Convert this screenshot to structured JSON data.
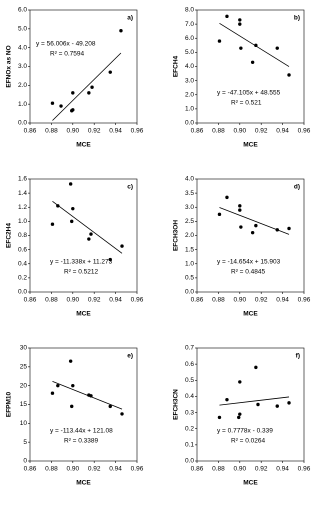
{
  "chart_data": [
    {
      "type": "scatter",
      "panel_label": "a)",
      "xlabel": "MCE",
      "ylabel": "EFNOx as NO",
      "equation": "y = 56.006x - 49.208",
      "r2": "R² = 0.7594",
      "x": [
        0.881,
        0.889,
        0.899,
        0.9,
        0.9,
        0.915,
        0.918,
        0.935,
        0.945
      ],
      "values": [
        1.05,
        0.9,
        0.65,
        0.7,
        1.6,
        1.6,
        1.9,
        2.7,
        4.9
      ],
      "fit": {
        "slope": 56.006,
        "intercept": -49.208
      },
      "color": "#000000",
      "xlim": [
        0.86,
        0.96
      ],
      "xticks": [
        0.86,
        0.88,
        {
          "value": 0.9,
          "label": "0.90"
        },
        0.92,
        0.94,
        0.96
      ],
      "ylim": [
        0,
        6
      ],
      "yticks": [
        {
          "value": 0,
          "label": "0.0"
        },
        {
          "value": 1,
          "label": "1.0"
        },
        {
          "value": 2,
          "label": "2.0"
        },
        {
          "value": 3,
          "label": "3.0"
        },
        {
          "value": 4,
          "label": "4.0"
        },
        {
          "value": 5,
          "label": "5.0"
        },
        {
          "value": 6,
          "label": "6.0"
        }
      ]
    },
    {
      "type": "scatter",
      "panel_label": "b)",
      "xlabel": "MCE",
      "ylabel": "EFCH4",
      "equation": "y = -47.105x + 48.555",
      "r2": "R² = 0.521",
      "x": [
        0.881,
        0.888,
        0.9,
        0.9,
        0.901,
        0.912,
        0.915,
        0.935,
        0.946
      ],
      "values": [
        5.8,
        7.55,
        7.0,
        7.3,
        5.3,
        4.3,
        5.5,
        5.3,
        3.4
      ],
      "fit": {
        "slope": -47.105,
        "intercept": 48.555
      },
      "color": "#000000",
      "xlim": [
        0.86,
        0.96
      ],
      "xticks": [
        0.86,
        0.88,
        {
          "value": 0.9,
          "label": "0.90"
        },
        0.92,
        0.94,
        0.96
      ],
      "ylim": [
        0,
        8
      ],
      "yticks": [
        {
          "value": 0,
          "label": "0.0"
        },
        {
          "value": 1,
          "label": "1.0"
        },
        {
          "value": 2,
          "label": "2.0"
        },
        {
          "value": 3,
          "label": "3.0"
        },
        {
          "value": 4,
          "label": "4.0"
        },
        {
          "value": 5,
          "label": "5.0"
        },
        {
          "value": 6,
          "label": "6.0"
        },
        {
          "value": 7,
          "label": "7.0"
        },
        {
          "value": 8,
          "label": "8.0"
        }
      ]
    },
    {
      "type": "scatter",
      "panel_label": "c)",
      "xlabel": "MCE",
      "ylabel": "EFC2H4",
      "equation": "y = -11.338x + 11.273",
      "r2": "R² = 0.5212",
      "x": [
        0.881,
        0.886,
        0.898,
        0.899,
        0.9,
        0.915,
        0.917,
        0.935,
        0.946
      ],
      "values": [
        0.96,
        1.22,
        1.53,
        1.0,
        1.18,
        0.75,
        0.82,
        0.46,
        0.65
      ],
      "fit": {
        "slope": -11.338,
        "intercept": 11.273
      },
      "color": "#000000",
      "xlim": [
        0.86,
        0.96
      ],
      "xticks": [
        0.86,
        0.88,
        {
          "value": 0.9,
          "label": "0.90"
        },
        0.92,
        0.94,
        0.96
      ],
      "ylim": [
        0,
        1.6
      ],
      "yticks": [
        {
          "value": 0,
          "label": "0.0"
        },
        0.2,
        0.4,
        0.6,
        0.8,
        {
          "value": 1,
          "label": "1.0"
        },
        1.2,
        1.4,
        1.6
      ]
    },
    {
      "type": "scatter",
      "panel_label": "d)",
      "xlabel": "MCE",
      "ylabel": "EFCH3OH",
      "equation": "y = -14.654x + 15.903",
      "r2": "R² = 0.4845",
      "x": [
        0.881,
        0.888,
        0.9,
        0.9,
        0.901,
        0.912,
        0.915,
        0.935,
        0.946
      ],
      "values": [
        2.75,
        3.35,
        2.9,
        3.05,
        2.3,
        2.1,
        2.35,
        2.2,
        2.25
      ],
      "fit": {
        "slope": -14.654,
        "intercept": 15.903
      },
      "color": "#000000",
      "xlim": [
        0.86,
        0.96
      ],
      "xticks": [
        0.86,
        0.88,
        {
          "value": 0.9,
          "label": "0.90"
        },
        0.92,
        0.94,
        0.96
      ],
      "ylim": [
        0,
        4
      ],
      "yticks": [
        {
          "value": 0,
          "label": "0.0"
        },
        0.5,
        {
          "value": 1,
          "label": "1.0"
        },
        1.5,
        {
          "value": 2,
          "label": "2.0"
        },
        2.5,
        {
          "value": 3,
          "label": "3.0"
        },
        3.5,
        {
          "value": 4,
          "label": "4.0"
        }
      ]
    },
    {
      "type": "scatter",
      "panel_label": "e)",
      "xlabel": "MCE",
      "ylabel": "EFPM10",
      "equation": "y = -113.44x + 121.08",
      "r2": "R² = 0.3389",
      "x": [
        0.881,
        0.886,
        0.898,
        0.899,
        0.9,
        0.915,
        0.917,
        0.935,
        0.946
      ],
      "values": [
        18,
        20,
        26.5,
        14.5,
        20,
        17.5,
        17.3,
        14.5,
        12.5
      ],
      "fit": {
        "slope": -113.44,
        "intercept": 121.08
      },
      "color": "#000000",
      "xlim": [
        0.86,
        0.96
      ],
      "xticks": [
        0.86,
        0.88,
        {
          "value": 0.9,
          "label": "0.90"
        },
        0.92,
        0.94,
        0.96
      ],
      "ylim": [
        0,
        30
      ],
      "yticks": [
        0,
        5,
        10,
        15,
        20,
        25,
        30
      ]
    },
    {
      "type": "scatter",
      "panel_label": "f)",
      "xlabel": "MCE",
      "ylabel": "EFCH3CN",
      "equation": "y = 0.7778x - 0.339",
      "r2": "R² = 0.0264",
      "x": [
        0.881,
        0.888,
        0.899,
        0.9,
        0.9,
        0.915,
        0.917,
        0.935,
        0.946
      ],
      "values": [
        0.27,
        0.38,
        0.27,
        0.29,
        0.49,
        0.58,
        0.35,
        0.34,
        0.36
      ],
      "fit": {
        "slope": 0.7778,
        "intercept": -0.339
      },
      "color": "#000000",
      "xlim": [
        0.86,
        0.96
      ],
      "xticks": [
        0.86,
        0.88,
        {
          "value": 0.9,
          "label": "0.90"
        },
        0.92,
        0.94,
        0.96
      ],
      "ylim": [
        0,
        0.7
      ],
      "yticks": [
        {
          "value": 0,
          "label": "0.0"
        },
        0.1,
        0.2,
        0.3,
        0.4,
        0.5,
        0.6,
        0.7
      ]
    }
  ]
}
